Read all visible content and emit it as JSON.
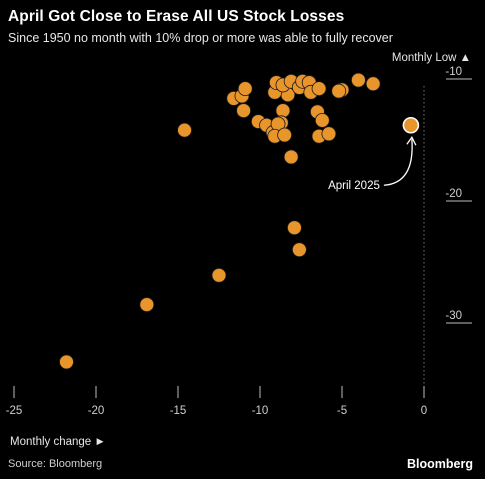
{
  "header": {
    "title": "April Got Close to Erase All US Stock Losses",
    "subtitle": "Since 1950 no month with 10% drop or more was able to fully recover"
  },
  "footer": {
    "source": "Source: Bloomberg",
    "brand": "Bloomberg"
  },
  "chart_data": {
    "type": "scatter",
    "title": "April Got Close to Erase All US Stock Losses",
    "subtitle": "Since 1950 no month with 10% drop or more was able to fully recover",
    "xlabel": "Monthly change ►",
    "ylabel": "Monthly Low ▲",
    "xlim": [
      -25,
      0
    ],
    "ylim": [
      -34,
      -10
    ],
    "x_ticks": [
      -25,
      -20,
      -15,
      -10,
      -5,
      0
    ],
    "y_ticks": [
      -10,
      -20,
      -30
    ],
    "x_tick_labels": [
      "-25",
      "-20",
      "-15",
      "-10",
      "-5",
      "0"
    ],
    "y_tick_labels": [
      "-10",
      "-20",
      "-30"
    ],
    "grid": false,
    "colors": {
      "point": "#E8952C",
      "highlight": "#E8952C",
      "highlight_outline": "#ffffff"
    },
    "points": [
      {
        "x": -21.8,
        "y": -33.6
      },
      {
        "x": -16.9,
        "y": -28.9
      },
      {
        "x": -12.5,
        "y": -26.5
      },
      {
        "x": -7.6,
        "y": -24.4
      },
      {
        "x": -7.9,
        "y": -22.6
      },
      {
        "x": -14.6,
        "y": -14.6
      },
      {
        "x": -11.6,
        "y": -12.0
      },
      {
        "x": -11.1,
        "y": -11.8
      },
      {
        "x": -10.9,
        "y": -11.2
      },
      {
        "x": -11.0,
        "y": -13.0
      },
      {
        "x": -10.1,
        "y": -13.9
      },
      {
        "x": -9.6,
        "y": -14.2
      },
      {
        "x": -9.2,
        "y": -14.8
      },
      {
        "x": -8.6,
        "y": -13.0
      },
      {
        "x": -8.7,
        "y": -14.0
      },
      {
        "x": -8.9,
        "y": -14.1
      },
      {
        "x": -9.1,
        "y": -15.1
      },
      {
        "x": -8.5,
        "y": -15.0
      },
      {
        "x": -8.3,
        "y": -11.7
      },
      {
        "x": -9.1,
        "y": -11.5
      },
      {
        "x": -9.0,
        "y": -10.7
      },
      {
        "x": -8.6,
        "y": -10.9
      },
      {
        "x": -8.1,
        "y": -10.6
      },
      {
        "x": -7.6,
        "y": -11.1
      },
      {
        "x": -7.4,
        "y": -10.6
      },
      {
        "x": -7.0,
        "y": -10.7
      },
      {
        "x": -6.9,
        "y": -11.5
      },
      {
        "x": -6.4,
        "y": -11.2
      },
      {
        "x": -6.5,
        "y": -13.1
      },
      {
        "x": -6.2,
        "y": -13.8
      },
      {
        "x": -6.4,
        "y": -15.1
      },
      {
        "x": -5.8,
        "y": -14.9
      },
      {
        "x": -5.0,
        "y": -11.3
      },
      {
        "x": -5.2,
        "y": -11.4
      },
      {
        "x": -4.0,
        "y": -10.5
      },
      {
        "x": -3.1,
        "y": -10.8
      },
      {
        "x": -8.1,
        "y": -16.8
      }
    ],
    "highlight": {
      "label": "April 2025",
      "x": -0.8,
      "y": -14.2
    }
  }
}
